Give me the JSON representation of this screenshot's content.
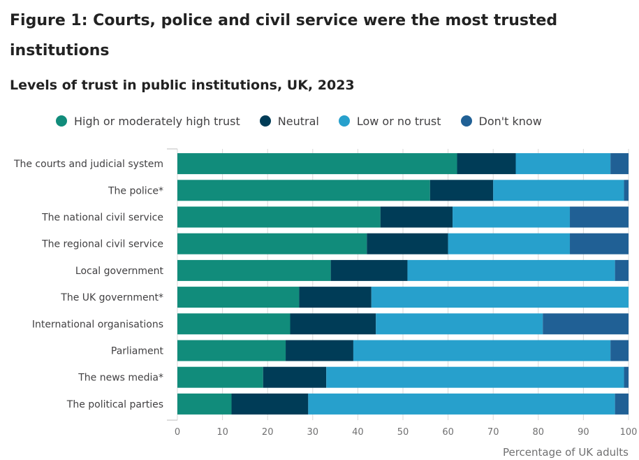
{
  "figure": {
    "title": "Figure 1: Courts, police and civil service were the most trusted institutions",
    "subtitle": "Levels of trust in public institutions, UK, 2023"
  },
  "chart_data": {
    "type": "bar",
    "orientation": "horizontal",
    "stacked": true,
    "title": "Levels of trust in public institutions, UK, 2023",
    "xlabel": "Percentage of UK adults",
    "ylabel": "",
    "xlim": [
      0,
      100
    ],
    "xticks": [
      0,
      10,
      20,
      30,
      40,
      50,
      60,
      70,
      80,
      90,
      100
    ],
    "legend_position": "top",
    "categories": [
      "The courts and judicial system",
      "The police*",
      "The national civil service",
      "The regional civil service",
      "Local government",
      "The UK government*",
      "International organisations",
      "Parliament",
      "The news media*",
      "The political parties"
    ],
    "series": [
      {
        "name": "High or moderately high trust",
        "color": "#118c7b",
        "values": [
          62,
          56,
          45,
          42,
          34,
          27,
          25,
          24,
          19,
          12
        ]
      },
      {
        "name": "Neutral",
        "color": "#003c57",
        "values": [
          13,
          14,
          16,
          18,
          17,
          16,
          19,
          15,
          14,
          17
        ]
      },
      {
        "name": "Low or no trust",
        "color": "#27a0cc",
        "values": [
          21,
          29,
          26,
          27,
          46,
          57,
          37,
          57,
          66,
          68
        ]
      },
      {
        "name": "Don't know",
        "color": "#206095",
        "values": [
          4,
          1,
          13,
          13,
          3,
          0,
          19,
          4,
          1,
          3
        ]
      }
    ]
  }
}
